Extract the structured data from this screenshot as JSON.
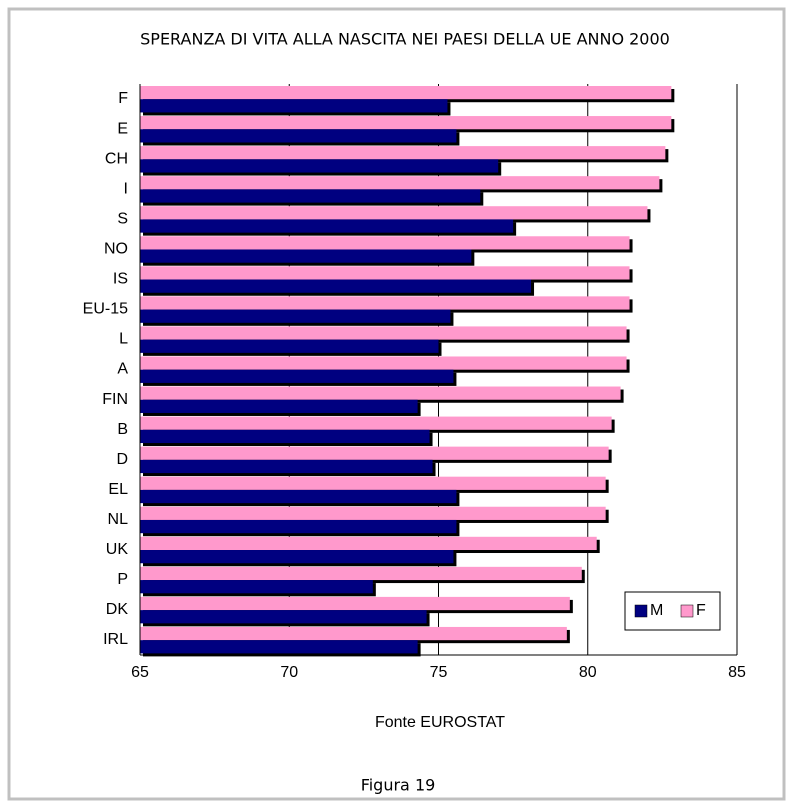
{
  "chart_data": {
    "type": "barh",
    "title": "SPERANZA DI VITA ALLA NASCITA NEI PAESI DELLA UE ANNO 2000",
    "xlabel": "Fonte EUROSTAT",
    "caption": "Figura 19",
    "categories": [
      "F",
      "E",
      "CH",
      "I",
      "S",
      "NO",
      "IS",
      "EU-15",
      "L",
      "A",
      "FIN",
      "B",
      "D",
      "EL",
      "NL",
      "UK",
      "P",
      "DK",
      "IRL"
    ],
    "series": [
      {
        "name": "M",
        "color": "#000080",
        "values": [
          75.3,
          75.6,
          77.0,
          76.4,
          77.5,
          76.1,
          78.1,
          75.4,
          75.0,
          75.5,
          74.3,
          74.7,
          74.8,
          75.6,
          75.6,
          75.5,
          72.8,
          74.6,
          74.3
        ]
      },
      {
        "name": "F",
        "color": "#ff99cc",
        "values": [
          82.8,
          82.8,
          82.6,
          82.4,
          82.0,
          81.4,
          81.4,
          81.4,
          81.3,
          81.3,
          81.1,
          80.8,
          80.7,
          80.6,
          80.6,
          80.3,
          79.8,
          79.4,
          79.3
        ]
      }
    ],
    "xlim": [
      65,
      85
    ],
    "xticks": [
      65,
      70,
      75,
      80,
      85
    ],
    "grid": true,
    "legend": "lower right"
  }
}
